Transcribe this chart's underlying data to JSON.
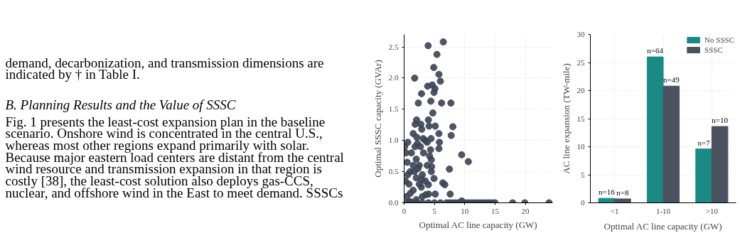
{
  "chart_data": [
    {
      "type": "other",
      "title": "B.  Planning Results and the Value of SSSC",
      "annotations": [
        "demand, decarbonization, and transmission dimensions are",
        "indicated by † in Table I.",
        "    Fig. 1 presents the least-cost expansion plan in the baseline",
        "scenario. Onshore wind is concentrated in the central U.S.,",
        "whereas most other regions expand primarily with solar.",
        "Because major eastern load centers are distant from the central",
        "wind resource and transmission expansion in that region is",
        "costly [38], the least-cost solution also deploys gas-CCS,",
        "nuclear, and offshore wind in the East to meet demand. SSSCs"
      ]
    },
    {
      "type": "scatter",
      "xlabel": "Optimal AC line capacity (GW)",
      "ylabel": "Optimal SSSC capacity (GVAr)",
      "marker": "circle",
      "grid": true,
      "xlim": [
        0,
        24.5
      ],
      "ylim": [
        0,
        2.7
      ],
      "xticks": [
        0,
        5,
        10,
        15,
        20
      ],
      "yticks": [
        {
          "value": 0,
          "label": "0.0"
        },
        {
          "value": 0.5,
          "label": "0.5"
        },
        {
          "value": 1,
          "label": "1.0"
        },
        {
          "value": 1.5,
          "label": "1.5"
        },
        {
          "value": 2,
          "label": "2.0"
        },
        {
          "value": 2.5,
          "label": "2.5"
        }
      ],
      "series": [
        {
          "color": "#3b4454",
          "x": [
            6.46,
            3.96,
            5.41,
            4.89,
            5.74,
            5.98,
            1.74,
            3.88,
            4.65,
            5.09,
            4.93,
            2.87,
            2.34,
            4.4,
            6.18,
            7.72,
            4.73,
            4.0,
            2.06,
            1.82,
            2.75,
            4.12,
            5.13,
            2.91,
            8.04,
            5.74,
            7.76,
            1.5,
            2.1,
            4.44,
            3.15,
            0.6,
            5.82,
            5.74,
            3.8,
            4.36,
            9.49,
            10.59,
            7.47,
            4.48,
            4.53,
            4.48,
            4.93,
            6.38,
            6.71,
            7.6,
            5.13,
            4.04,
            3.56,
            4.0,
            2.83,
            2.91,
            0.3,
            0.5,
            1.0,
            1.5,
            2.0,
            2.5,
            1.2,
            1.8,
            2.2,
            0.8,
            1.5,
            0.4,
            2.5,
            3.0,
            3.5,
            3.2,
            2.7,
            3.5,
            2.0,
            1.0,
            0.2,
            0.6,
            1.7,
            2.3,
            3.8,
            4.2,
            3.0,
            2.0,
            1.0,
            0.1,
            0.5,
            1.0,
            2.0,
            3.0,
            4.0,
            5.0,
            6.0,
            7.0,
            7.5,
            8.0,
            8.5,
            9.0,
            9.5,
            10.0,
            10.5,
            11.0,
            11.5,
            12.0,
            12.5,
            13.0,
            13.5,
            14.0,
            14.5,
            15.0,
            17.9,
            19.9,
            23.9
          ],
          "values": [
            2.58,
            2.52,
            2.38,
            2.17,
            2.06,
            1.95,
            2.0,
            1.87,
            1.89,
            1.83,
            1.77,
            1.75,
            1.6,
            1.63,
            1.6,
            1.6,
            1.44,
            1.33,
            1.33,
            1.26,
            1.26,
            1.23,
            1.23,
            1.18,
            1.22,
            1.11,
            1.08,
            1.11,
            1.05,
            1.03,
            1.03,
            0.97,
            0.97,
            0.87,
            0.97,
            0.85,
            0.77,
            0.66,
            0.54,
            0.69,
            0.58,
            0.5,
            0.39,
            0.32,
            0.29,
            0.14,
            0.14,
            0.14,
            0.13,
            0.29,
            0.25,
            0.37,
            0.8,
            0.65,
            0.5,
            0.6,
            0.7,
            0.6,
            0.8,
            0.9,
            0.95,
            0.3,
            0.2,
            0.1,
            0.3,
            0.45,
            0.35,
            0.8,
            0.9,
            1.0,
            0.4,
            0.15,
            0.35,
            0.45,
            0.5,
            0.55,
            0.6,
            0.75,
            0.1,
            0.05,
            0.02,
            0.9,
            0,
            0,
            0,
            0,
            0,
            0,
            0,
            0,
            0,
            0,
            0,
            0,
            0.03,
            0,
            0,
            0,
            0,
            0,
            0,
            0,
            0,
            0,
            0,
            0,
            0,
            0,
            0
          ]
        }
      ]
    },
    {
      "type": "bar",
      "xlabel": "Optimal AC line capacity (GW)",
      "ylabel": "AC line expansion (TW-mile)",
      "grid": true,
      "legend": "top right",
      "categories": [
        "<1",
        "1-10",
        ">10"
      ],
      "ylim": [
        0,
        30
      ],
      "yticks": [
        0,
        5,
        10,
        15,
        20,
        25,
        30
      ],
      "series": [
        {
          "name": "No SSSC",
          "color": "#1a8a85",
          "values": [
            0.8,
            26.0,
            9.6
          ]
        },
        {
          "name": "SSSC",
          "color": "#4a5260",
          "values": [
            0.7,
            20.8,
            13.6
          ]
        }
      ],
      "annotations": [
        {
          "text": "n=16",
          "x": "<1",
          "y": 0.8
        },
        {
          "text": "n=8",
          "x": "<1",
          "y": 0.7
        },
        {
          "text": "n=64",
          "x": "1-10",
          "y": 26.0
        },
        {
          "text": "n=49",
          "x": "1-10",
          "y": 20.8
        },
        {
          "text": "n=7",
          "x": ">10",
          "y": 9.6
        },
        {
          "text": "n=10",
          "x": ">10",
          "y": 13.6
        }
      ]
    }
  ]
}
